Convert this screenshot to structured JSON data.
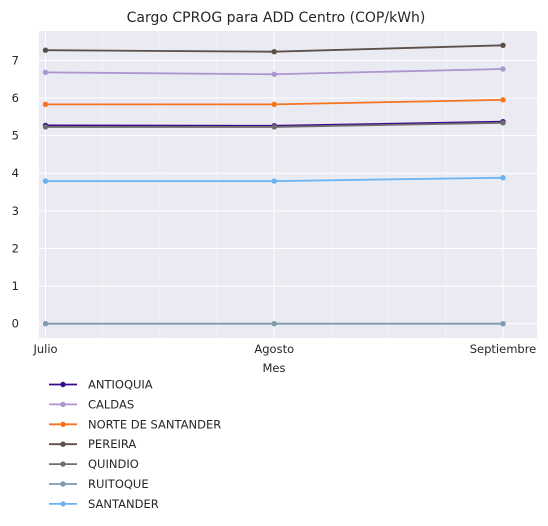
{
  "chart_data": {
    "type": "line",
    "title": "Cargo CPROG para ADD Centro (COP/kWh)",
    "xlabel": "Mes",
    "ylabel": "",
    "x": [
      "Julio",
      "Agosto",
      "Septiembre"
    ],
    "ylim": [
      -0.38,
      7.78
    ],
    "yticks": [
      0,
      1,
      2,
      3,
      4,
      5,
      6,
      7
    ],
    "grid": true,
    "legend_position": "below",
    "series": [
      {
        "name": "ANTIOQUIA",
        "color": "#3b0a8c",
        "values": [
          5.27,
          5.26,
          5.37
        ]
      },
      {
        "name": "CALDAS",
        "color": "#ad95d0",
        "values": [
          6.68,
          6.63,
          6.77
        ]
      },
      {
        "name": "NORTE DE SANTANDER",
        "color": "#f7731e",
        "values": [
          5.83,
          5.83,
          5.95
        ]
      },
      {
        "name": "PEREIRA",
        "color": "#5d4f4a",
        "values": [
          7.27,
          7.23,
          7.4
        ]
      },
      {
        "name": "QUINDIO",
        "color": "#6e6e6e",
        "values": [
          5.23,
          5.23,
          5.34
        ]
      },
      {
        "name": "RUITOQUE",
        "color": "#7f99ad",
        "values": [
          0,
          0,
          0
        ]
      },
      {
        "name": "SANTANDER",
        "color": "#6ab1f2",
        "values": [
          3.79,
          3.79,
          3.88
        ]
      }
    ]
  }
}
